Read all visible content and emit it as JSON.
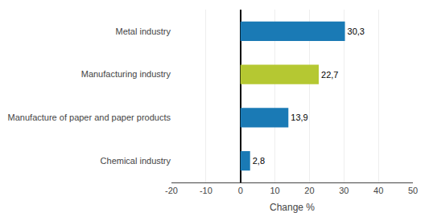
{
  "chart_data": {
    "type": "bar",
    "orientation": "horizontal",
    "categories": [
      "Metal industry",
      "Manufacturing industry",
      "Manufacture of paper and paper products",
      "Chemical industry"
    ],
    "values": [
      30.3,
      22.7,
      13.9,
      2.8
    ],
    "value_labels": [
      "30,3",
      "22,7",
      "13,9",
      "2,8"
    ],
    "data_labels": true,
    "colors": [
      "#1a7ab5",
      "#b5c832",
      "#1a7ab5",
      "#1a7ab5"
    ],
    "xlabel": "Change %",
    "xlim": [
      -20,
      50
    ],
    "xticks": [
      -20,
      -10,
      0,
      10,
      20,
      30,
      40,
      50
    ],
    "grid": true
  }
}
